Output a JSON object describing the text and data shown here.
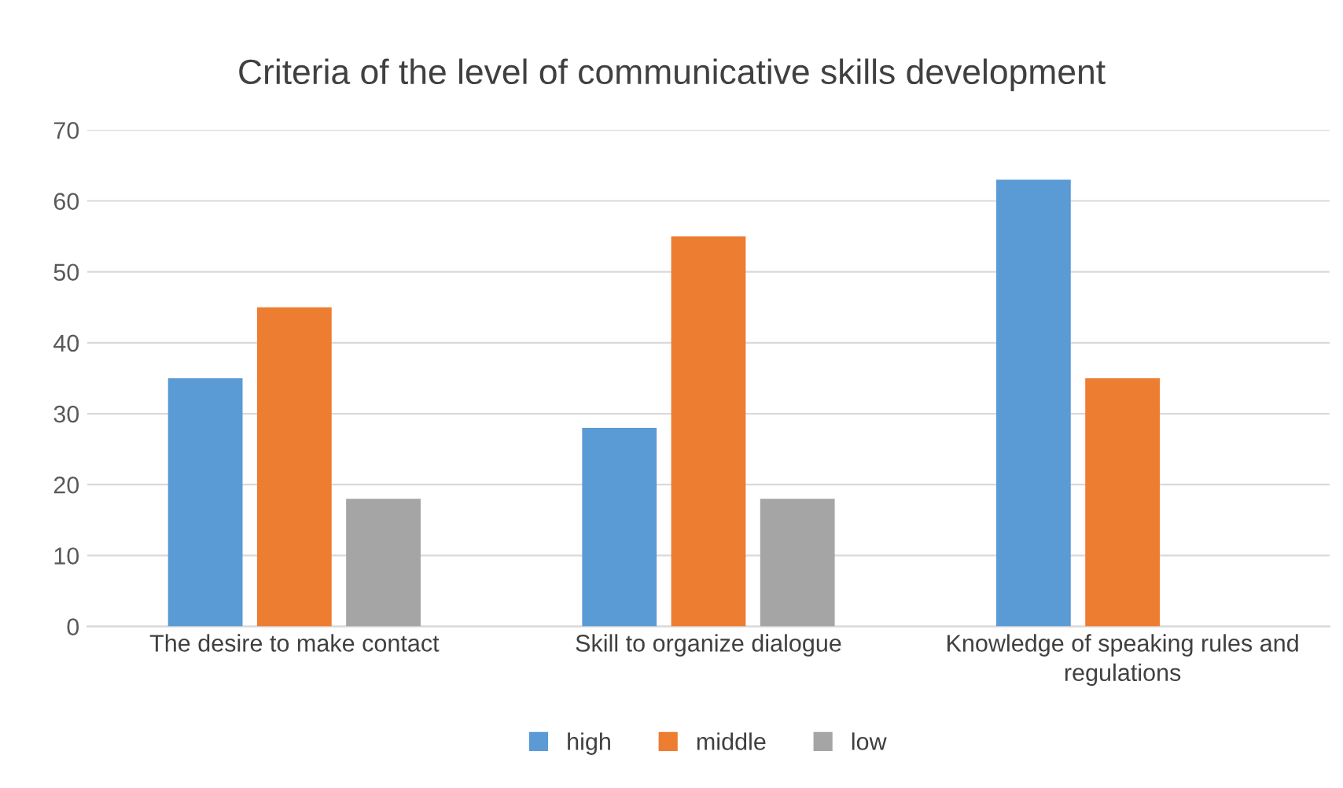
{
  "chart_data": {
    "type": "bar",
    "title": "Criteria of the level of communicative skills development",
    "categories": [
      "The desire to make contact",
      "Skill to organize dialogue",
      "Knowledge of speaking rules and regulations"
    ],
    "series": [
      {
        "name": "high",
        "color": "#5b9bd5",
        "values": [
          35,
          28,
          63
        ]
      },
      {
        "name": "middle",
        "color": "#ed7d31",
        "values": [
          45,
          55,
          35
        ]
      },
      {
        "name": "low",
        "color": "#a5a5a5",
        "values": [
          18,
          18,
          0
        ]
      }
    ],
    "ylim": [
      0,
      70
    ],
    "yticks": [
      0,
      10,
      20,
      30,
      40,
      50,
      60,
      70
    ],
    "grid": "y",
    "legend": "bottom"
  }
}
